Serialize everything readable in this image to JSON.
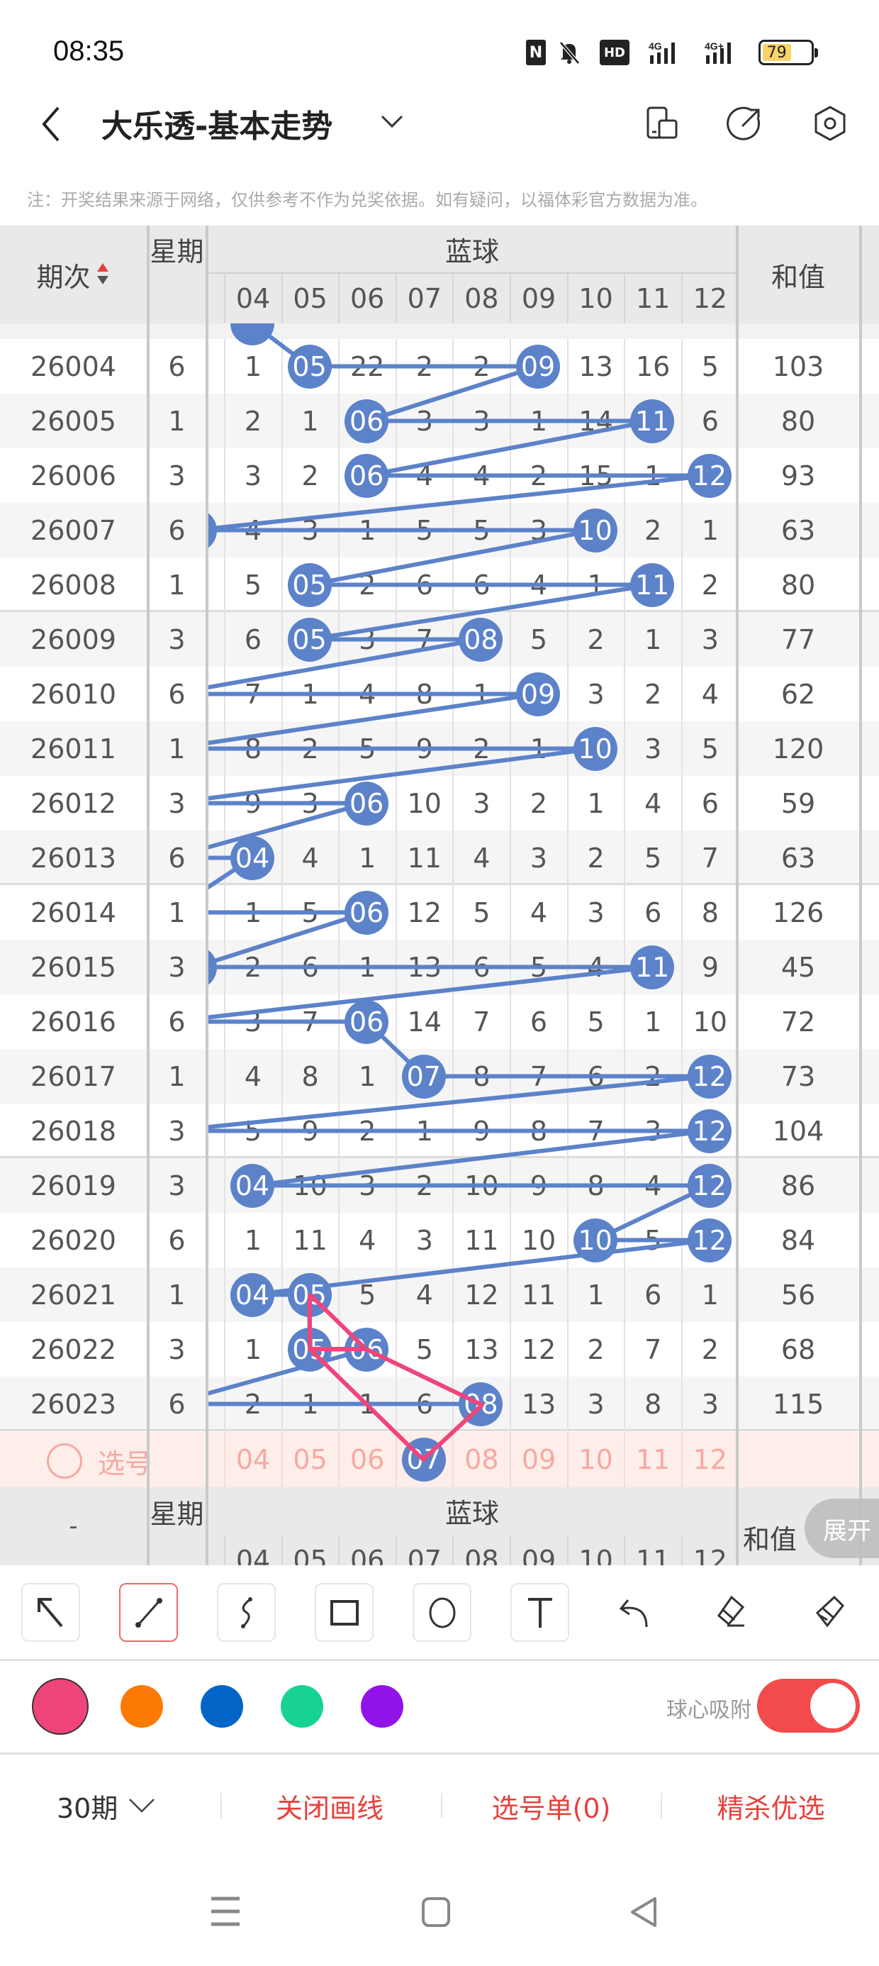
{
  "status_bar": {
    "time": "08:35",
    "battery": "79",
    "network1": "4G",
    "network2": "4G+",
    "hd_label": "HD"
  },
  "header": {
    "title": "大乐透-基本走势"
  },
  "note": "注：开奖结果来源于网络，仅供参考不作为兑奖依据。如有疑问，以福体彩官方数据为准。",
  "table": {
    "col_issue": "期次",
    "col_week": "星期",
    "col_blue": "蓝球",
    "col_sum": "和值",
    "blue_columns": [
      "04",
      "05",
      "06",
      "07",
      "08",
      "09",
      "10",
      "11",
      "12"
    ],
    "prev_row_ball": 4,
    "rows": [
      {
        "issue": "26004",
        "week": "6",
        "cells": [
          "1",
          "05",
          "22",
          "2",
          "2",
          "09",
          "13",
          "16",
          "5"
        ],
        "balls": [
          5,
          9
        ],
        "sum": "103"
      },
      {
        "issue": "26005",
        "week": "1",
        "cells": [
          "2",
          "1",
          "06",
          "3",
          "3",
          "1",
          "14",
          "11",
          "6"
        ],
        "balls": [
          6,
          11
        ],
        "sum": "80"
      },
      {
        "issue": "26006",
        "week": "3",
        "cells": [
          "3",
          "2",
          "06",
          "4",
          "4",
          "2",
          "15",
          "1",
          "12"
        ],
        "balls": [
          6,
          12
        ],
        "sum": "93"
      },
      {
        "issue": "26007",
        "week": "6",
        "cells": [
          "4",
          "3",
          "1",
          "5",
          "5",
          "3",
          "10",
          "2",
          "1"
        ],
        "balls": [
          3,
          10
        ],
        "sum": "63"
      },
      {
        "issue": "26008",
        "week": "1",
        "cells": [
          "5",
          "05",
          "2",
          "6",
          "6",
          "4",
          "1",
          "11",
          "2"
        ],
        "balls": [
          5,
          11
        ],
        "sum": "80"
      },
      {
        "issue": "26009",
        "week": "3",
        "cells": [
          "6",
          "05",
          "3",
          "7",
          "08",
          "5",
          "2",
          "1",
          "3"
        ],
        "balls": [
          5,
          8
        ],
        "sum": "77"
      },
      {
        "issue": "26010",
        "week": "6",
        "cells": [
          "7",
          "1",
          "4",
          "8",
          "1",
          "09",
          "3",
          "2",
          "4"
        ],
        "balls": [
          9
        ],
        "sum": "62"
      },
      {
        "issue": "26011",
        "week": "1",
        "cells": [
          "8",
          "2",
          "5",
          "9",
          "2",
          "1",
          "10",
          "3",
          "5"
        ],
        "balls": [
          10
        ],
        "sum": "120"
      },
      {
        "issue": "26012",
        "week": "3",
        "cells": [
          "9",
          "3",
          "06",
          "10",
          "3",
          "2",
          "1",
          "4",
          "6"
        ],
        "balls": [
          6
        ],
        "sum": "59"
      },
      {
        "issue": "26013",
        "week": "6",
        "cells": [
          "04",
          "4",
          "1",
          "11",
          "4",
          "3",
          "2",
          "5",
          "7"
        ],
        "balls": [
          4
        ],
        "sum": "63"
      },
      {
        "issue": "26014",
        "week": "1",
        "cells": [
          "1",
          "5",
          "06",
          "12",
          "5",
          "4",
          "3",
          "6",
          "8"
        ],
        "balls": [
          6
        ],
        "sum": "126"
      },
      {
        "issue": "26015",
        "week": "3",
        "cells": [
          "2",
          "6",
          "1",
          "13",
          "6",
          "5",
          "4",
          "11",
          "9"
        ],
        "balls": [
          3,
          11
        ],
        "sum": "45"
      },
      {
        "issue": "26016",
        "week": "6",
        "cells": [
          "3",
          "7",
          "06",
          "14",
          "7",
          "6",
          "5",
          "1",
          "10"
        ],
        "balls": [
          6
        ],
        "sum": "72"
      },
      {
        "issue": "26017",
        "week": "1",
        "cells": [
          "4",
          "8",
          "1",
          "07",
          "8",
          "7",
          "6",
          "2",
          "12"
        ],
        "balls": [
          7,
          12
        ],
        "sum": "73"
      },
      {
        "issue": "26018",
        "week": "3",
        "cells": [
          "5",
          "9",
          "2",
          "1",
          "9",
          "8",
          "7",
          "3",
          "12"
        ],
        "balls": [
          12
        ],
        "sum": "104"
      },
      {
        "issue": "26019",
        "week": "3",
        "cells": [
          "04",
          "10",
          "3",
          "2",
          "10",
          "9",
          "8",
          "4",
          "12"
        ],
        "balls": [
          4,
          12
        ],
        "sum": "86"
      },
      {
        "issue": "26020",
        "week": "6",
        "cells": [
          "1",
          "11",
          "4",
          "3",
          "11",
          "10",
          "10",
          "5",
          "12"
        ],
        "balls": [
          10,
          12
        ],
        "sum": "84"
      },
      {
        "issue": "26021",
        "week": "1",
        "cells": [
          "04",
          "05",
          "5",
          "4",
          "12",
          "11",
          "1",
          "6",
          "1"
        ],
        "balls": [
          4,
          5
        ],
        "sum": "56"
      },
      {
        "issue": "26022",
        "week": "3",
        "cells": [
          "1",
          "05",
          "06",
          "5",
          "13",
          "12",
          "2",
          "7",
          "2"
        ],
        "balls": [
          5,
          6
        ],
        "sum": "68"
      },
      {
        "issue": "26023",
        "week": "6",
        "cells": [
          "2",
          "1",
          "1",
          "6",
          "08",
          "13",
          "3",
          "8",
          "3"
        ],
        "balls": [
          8
        ],
        "sum": "115"
      }
    ],
    "selection": {
      "label": "选号",
      "selected": [
        7
      ]
    },
    "footer_issue": "-",
    "expand_label": "展开"
  },
  "colors": {
    "ball": "#5c82c9",
    "line": "#5c82c9",
    "pen": "#f0457a",
    "accent": "#e8413d"
  },
  "toolbar": {
    "tools": [
      "arrow-icon",
      "line-icon",
      "freehand-icon",
      "rectangle-icon",
      "circle-icon",
      "text-icon",
      "undo-icon",
      "eraser-icon",
      "clear-icon"
    ],
    "selected_tool": "line-icon",
    "pen_colors": [
      "#f0457a",
      "#fc7a04",
      "#0365c8",
      "#17d293",
      "#9113e8"
    ],
    "selected_color": "#f0457a",
    "snap_label": "球心吸附",
    "snap_on": true
  },
  "bottom_bar": {
    "period": "30期",
    "close_drawing": "关闭画线",
    "pick_list": "选号单(0)",
    "premium": "精杀优选"
  }
}
